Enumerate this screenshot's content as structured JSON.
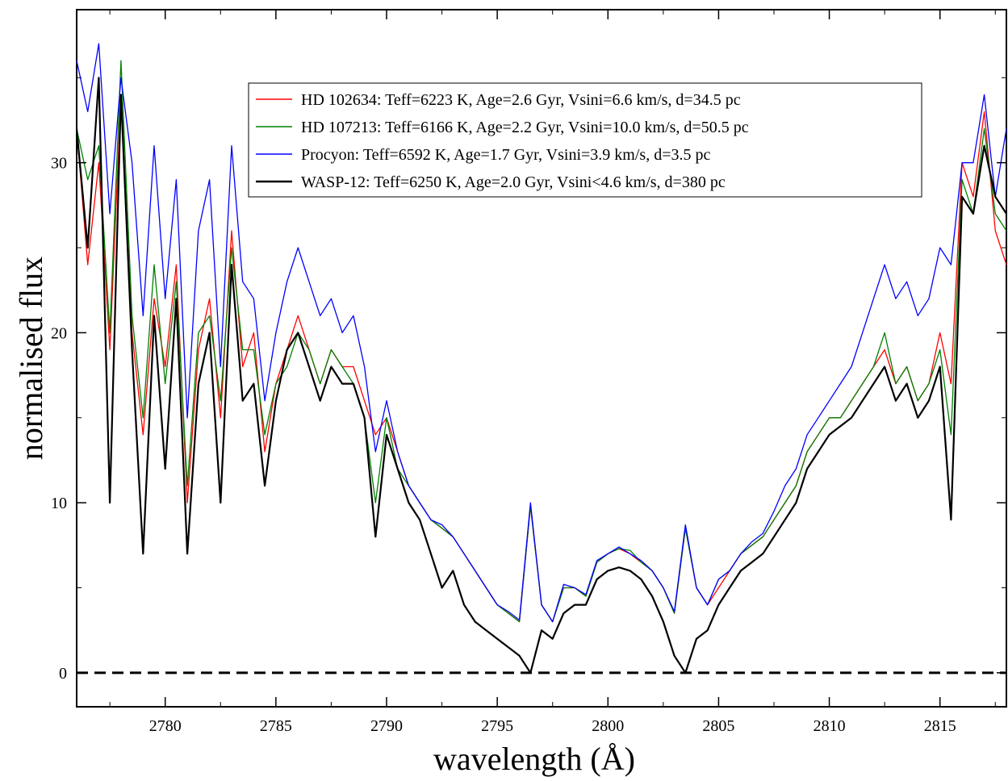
{
  "chart_data": {
    "type": "line",
    "xlabel": "wavelength (Å)",
    "ylabel": "normalised flux",
    "xlim": [
      2776,
      2818
    ],
    "ylim": [
      -2,
      39
    ],
    "xticks": [
      2780,
      2785,
      2790,
      2795,
      2800,
      2805,
      2810,
      2815
    ],
    "xtick_labels": [
      "2780",
      "2785",
      "2790",
      "2795",
      "2800",
      "2805",
      "2810",
      "2815"
    ],
    "yticks": [
      0,
      10,
      20,
      30
    ],
    "ytick_labels": [
      "0",
      "10",
      "20",
      "30"
    ],
    "grid": false,
    "legend_position": "top-center",
    "reference_line": {
      "y": 0,
      "style": "dashed",
      "color": "#000000"
    },
    "series": [
      {
        "name": "HD 102634: Teff=6223 K, Age=2.6 Gyr, Vsini=6.6 km/s, d=34.5 pc",
        "color": "#ff0000",
        "x": [
          2776,
          2776.5,
          2777,
          2777.5,
          2778,
          2778.5,
          2779,
          2779.5,
          2780,
          2780.5,
          2781,
          2781.5,
          2782,
          2782.5,
          2783,
          2783.5,
          2784,
          2784.5,
          2785,
          2785.5,
          2786,
          2786.5,
          2787,
          2787.5,
          2788,
          2788.5,
          2789,
          2789.5,
          2790,
          2790.5,
          2791,
          2791.5,
          2792,
          2792.5,
          2793,
          2793.5,
          2794,
          2794.5,
          2795,
          2795.5,
          2796,
          2796.5,
          2797,
          2797.5,
          2798,
          2798.5,
          2799,
          2799.5,
          2800,
          2800.5,
          2801,
          2801.5,
          2802,
          2802.5,
          2803,
          2803.5,
          2804,
          2804.5,
          2805,
          2805.5,
          2806,
          2806.5,
          2807,
          2807.5,
          2808,
          2808.5,
          2809,
          2809.5,
          2810,
          2810.5,
          2811,
          2811.5,
          2812,
          2812.5,
          2813,
          2813.5,
          2814,
          2814.5,
          2815,
          2815.5,
          2816,
          2816.5,
          2817,
          2817.5,
          2818
        ],
        "y": [
          32,
          24,
          30,
          19,
          34,
          20,
          14,
          22,
          18,
          24,
          10,
          19,
          22,
          15,
          26,
          18,
          20,
          13,
          17,
          19,
          21,
          19,
          17,
          19,
          18,
          18,
          16,
          14,
          15,
          13,
          11,
          10,
          9,
          8.5,
          8,
          7,
          6,
          5,
          4,
          3.5,
          3,
          9.8,
          4,
          3,
          5,
          5,
          4.5,
          6.5,
          7,
          7.3,
          7,
          6.5,
          6,
          5,
          3.5,
          8.5,
          5,
          4,
          5,
          6,
          7,
          7.5,
          8,
          9,
          10,
          11,
          13,
          14,
          15,
          15,
          16,
          17,
          18,
          19,
          17,
          18,
          16,
          17,
          20,
          17,
          30,
          28,
          33,
          26,
          24
        ]
      },
      {
        "name": "HD 107213: Teff=6166 K, Age=2.2 Gyr, Vsini=10.0 km/s, d=50.5 pc",
        "color": "#008000",
        "x": [
          2776,
          2776.5,
          2777,
          2777.5,
          2778,
          2778.5,
          2779,
          2779.5,
          2780,
          2780.5,
          2781,
          2781.5,
          2782,
          2782.5,
          2783,
          2783.5,
          2784,
          2784.5,
          2785,
          2785.5,
          2786,
          2786.5,
          2787,
          2787.5,
          2788,
          2788.5,
          2789,
          2789.5,
          2790,
          2790.5,
          2791,
          2791.5,
          2792,
          2792.5,
          2793,
          2793.5,
          2794,
          2794.5,
          2795,
          2795.5,
          2796,
          2796.5,
          2797,
          2797.5,
          2798,
          2798.5,
          2799,
          2799.5,
          2800,
          2800.5,
          2801,
          2801.5,
          2802,
          2802.5,
          2803,
          2803.5,
          2804,
          2804.5,
          2805,
          2805.5,
          2806,
          2806.5,
          2807,
          2807.5,
          2808,
          2808.5,
          2809,
          2809.5,
          2810,
          2810.5,
          2811,
          2811.5,
          2812,
          2812.5,
          2813,
          2813.5,
          2814,
          2814.5,
          2815,
          2815.5,
          2816,
          2816.5,
          2817,
          2817.5,
          2818
        ],
        "y": [
          32,
          29,
          31,
          20,
          36,
          21,
          15,
          24,
          17,
          23,
          11,
          20,
          21,
          16,
          25,
          19,
          19,
          14,
          17,
          18,
          20,
          19,
          17,
          19,
          18,
          17,
          15,
          10,
          15,
          12,
          11,
          10,
          9,
          8.5,
          8,
          7,
          6,
          5,
          4,
          3.5,
          3,
          9.8,
          4,
          3,
          5,
          5,
          4.5,
          6.5,
          7,
          7.3,
          7.2,
          6.5,
          6,
          5,
          3.5,
          8.5,
          5,
          4,
          5.5,
          6,
          7,
          7.5,
          8,
          9,
          10,
          11,
          13,
          14,
          15,
          15,
          16,
          17,
          18,
          20,
          17,
          18,
          16,
          17,
          19,
          14,
          29,
          27,
          32,
          27,
          26
        ]
      },
      {
        "name": "Procyon: Teff=6592 K, Age=1.7 Gyr, Vsini=3.9 km/s, d=3.5 pc",
        "color": "#0000ff",
        "x": [
          2776,
          2776.5,
          2777,
          2777.5,
          2778,
          2778.5,
          2779,
          2779.5,
          2780,
          2780.5,
          2781,
          2781.5,
          2782,
          2782.5,
          2783,
          2783.5,
          2784,
          2784.5,
          2785,
          2785.5,
          2786,
          2786.5,
          2787,
          2787.5,
          2788,
          2788.5,
          2789,
          2789.5,
          2790,
          2790.5,
          2791,
          2791.5,
          2792,
          2792.5,
          2793,
          2793.5,
          2794,
          2794.5,
          2795,
          2795.5,
          2796,
          2796.5,
          2797,
          2797.5,
          2798,
          2798.5,
          2799,
          2799.5,
          2800,
          2800.5,
          2801,
          2801.5,
          2802,
          2802.5,
          2803,
          2803.5,
          2804,
          2804.5,
          2805,
          2805.5,
          2806,
          2806.5,
          2807,
          2807.5,
          2808,
          2808.5,
          2809,
          2809.5,
          2810,
          2810.5,
          2811,
          2811.5,
          2812,
          2812.5,
          2813,
          2813.5,
          2814,
          2814.5,
          2815,
          2815.5,
          2816,
          2816.5,
          2817,
          2817.5,
          2818
        ],
        "y": [
          36,
          33,
          37,
          27,
          35,
          30,
          21,
          31,
          22,
          29,
          15,
          26,
          29,
          18,
          31,
          23,
          22,
          16,
          20,
          23,
          25,
          23,
          21,
          22,
          20,
          21,
          18,
          13,
          16,
          13,
          11,
          10,
          9,
          8.7,
          8,
          7,
          6,
          5,
          4,
          3.6,
          3.1,
          10,
          4,
          3,
          5.2,
          5,
          4.6,
          6.6,
          7,
          7.4,
          7,
          6.6,
          6,
          5,
          3.6,
          8.7,
          5,
          4,
          5.5,
          6,
          7,
          7.7,
          8.2,
          9.5,
          11,
          12,
          14,
          15,
          16,
          17,
          18,
          20,
          22,
          24,
          22,
          23,
          21,
          22,
          25,
          24,
          30,
          30,
          34,
          28,
          32
        ]
      },
      {
        "name": "WASP-12: Teff=6250 K, Age=2.0 Gyr, Vsini<4.6 km/s, d=380 pc",
        "color": "#000000",
        "x": [
          2776,
          2776.5,
          2777,
          2777.5,
          2778,
          2778.5,
          2779,
          2779.5,
          2780,
          2780.5,
          2781,
          2781.5,
          2782,
          2782.5,
          2783,
          2783.5,
          2784,
          2784.5,
          2785,
          2785.5,
          2786,
          2786.5,
          2787,
          2787.5,
          2788,
          2788.5,
          2789,
          2789.5,
          2790,
          2790.5,
          2791,
          2791.5,
          2792,
          2792.5,
          2793,
          2793.5,
          2794,
          2794.5,
          2795,
          2795.5,
          2796,
          2796.5,
          2797,
          2797.5,
          2798,
          2798.5,
          2799,
          2799.5,
          2800,
          2800.5,
          2801,
          2801.5,
          2802,
          2802.5,
          2803,
          2803.5,
          2804,
          2804.5,
          2805,
          2805.5,
          2806,
          2806.5,
          2807,
          2807.5,
          2808,
          2808.5,
          2809,
          2809.5,
          2810,
          2810.5,
          2811,
          2811.5,
          2812,
          2812.5,
          2813,
          2813.5,
          2814,
          2814.5,
          2815,
          2815.5,
          2816,
          2816.5,
          2817,
          2817.5,
          2818
        ],
        "y": [
          32,
          25,
          35,
          10,
          34,
          19,
          7,
          21,
          12,
          22,
          7,
          17,
          20,
          10,
          24,
          16,
          17,
          11,
          16,
          19,
          20,
          18,
          16,
          18,
          17,
          17,
          15,
          8,
          14,
          12,
          10,
          9,
          7,
          5,
          6,
          4,
          3,
          2.5,
          2,
          1.5,
          1,
          0,
          2.5,
          2,
          3.5,
          4,
          4,
          5.5,
          6,
          6.2,
          6,
          5.5,
          4.5,
          3,
          1,
          0,
          2,
          2.5,
          4,
          5,
          6,
          6.5,
          7,
          8,
          9,
          10,
          12,
          13,
          14,
          14.5,
          15,
          16,
          17,
          18,
          16,
          17,
          15,
          16,
          18,
          9,
          28,
          27,
          31,
          28,
          27
        ]
      }
    ],
    "legend": [
      "HD 102634: Teff=6223 K, Age=2.6 Gyr, Vsini=6.6 km/s, d=34.5 pc",
      "HD 107213: Teff=6166 K, Age=2.2 Gyr, Vsini=10.0 km/s, d=50.5 pc",
      "Procyon: Teff=6592 K, Age=1.7 Gyr, Vsini=3.9 km/s, d=3.5 pc",
      "WASP-12: Teff=6250 K, Age=2.0 Gyr, Vsini<4.6 km/s, d=380 pc"
    ]
  }
}
